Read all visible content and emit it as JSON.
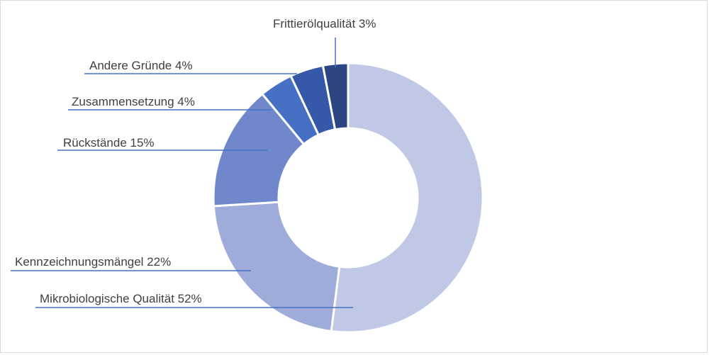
{
  "chart_data": {
    "type": "pie",
    "donut": true,
    "title": "",
    "legend": "none",
    "slices": [
      {
        "label": "Mikrobiologische Qualität",
        "value": 52,
        "display": "Mikrobiologische Qualität 52%",
        "color": "#bfc9e6"
      },
      {
        "label": "Kennzeichnungsmängel",
        "value": 22,
        "display": "Kennzeichnungsmängel 22%",
        "color": "#9facda"
      },
      {
        "label": "Rückstände",
        "value": 15,
        "display": "Rückstände 15%",
        "color": "#7088cb"
      },
      {
        "label": "Zusammensetzung",
        "value": 4,
        "display": "Zusammensetzung 4%",
        "color": "#4670c4"
      },
      {
        "label": "Andere Gründe",
        "value": 4,
        "display": "Andere Gründe 4%",
        "color": "#3559a8"
      },
      {
        "label": "Frittierölqualität",
        "value": 3,
        "display": "Frittierölqualität 3%",
        "color": "#2b4683"
      }
    ],
    "colors": {
      "leader": "#4472c4",
      "text": "#404040",
      "separator": "#ffffff"
    }
  }
}
